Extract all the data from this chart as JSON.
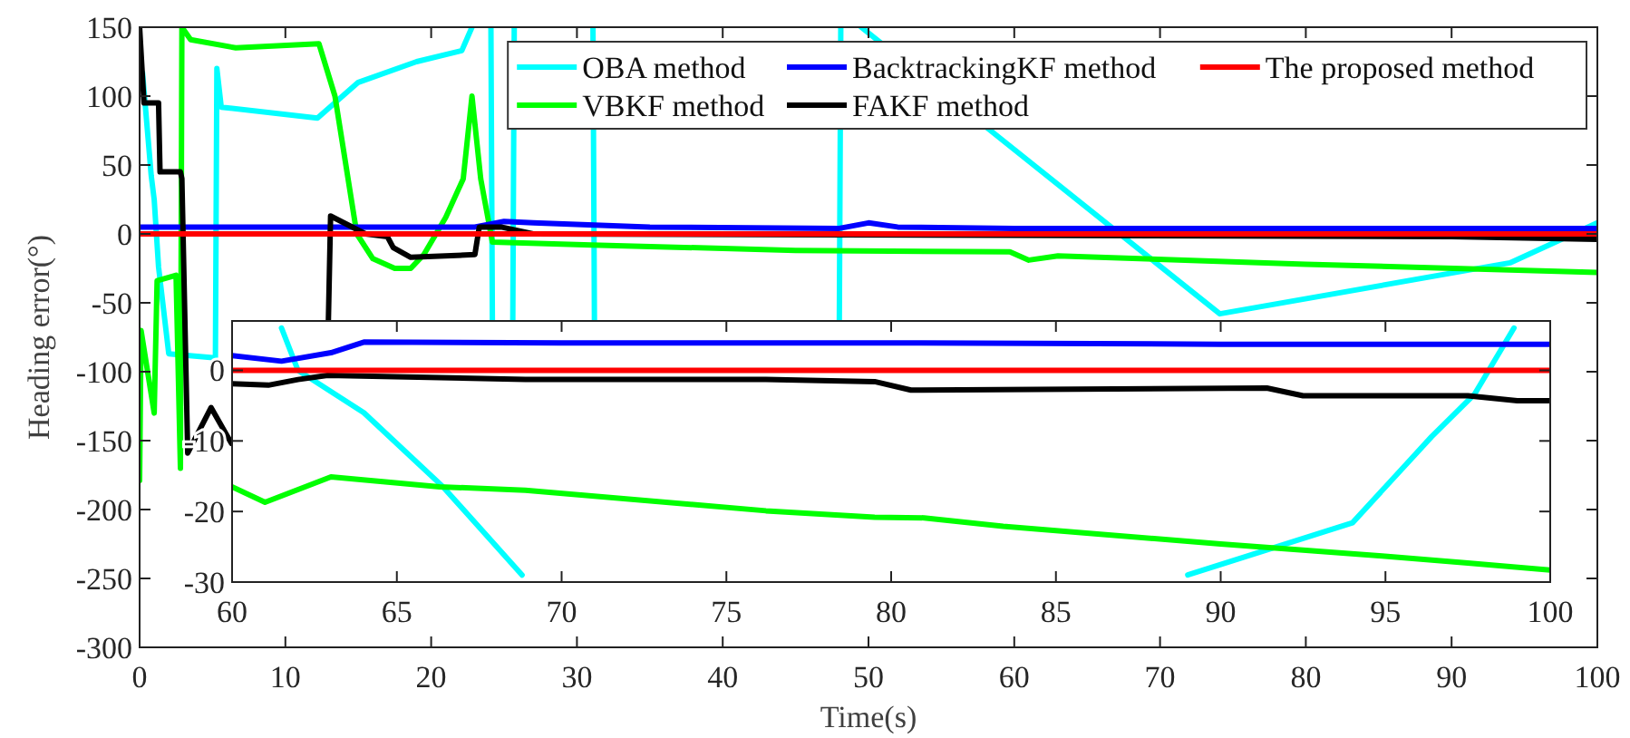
{
  "chart_data": [
    {
      "type": "line",
      "xlabel": "Time(s)",
      "ylabel": "Heading error(°)",
      "xlim": [
        0,
        100
      ],
      "ylim": [
        -300,
        150
      ],
      "xticks": [
        0,
        10,
        20,
        30,
        40,
        50,
        60,
        70,
        80,
        90,
        100
      ],
      "yticks": [
        -300,
        -250,
        -200,
        -150,
        -100,
        -50,
        0,
        50,
        100,
        150
      ],
      "legend": "top right",
      "series": [
        {
          "name": "OBA method",
          "color": "#00ffff",
          "x": [
            0.2,
            0.8,
            1.0,
            1.3,
            2.0,
            5.2,
            5.3,
            5.6,
            12.2,
            15,
            19,
            22.1,
            22.8,
            23.4,
            24.1,
            24.2,
            24.9,
            25.6,
            25.7,
            28,
            31.1,
            31.2,
            40,
            48,
            48.1,
            48.8,
            49.5,
            74.1,
            94,
            100
          ],
          "values": [
            117,
            42,
            25,
            -24,
            -87,
            -90,
            120,
            92,
            84,
            110,
            125,
            133,
            150,
            null,
            150,
            -63,
            null,
            -63,
            150,
            null,
            150,
            -63,
            null,
            -63,
            150,
            null,
            150,
            -58,
            -21,
            8
          ]
        },
        {
          "name": "VBKF method",
          "color": "#00ff00",
          "x": [
            0,
            0.1,
            1.0,
            1.2,
            2.5,
            2.8,
            2.9,
            3.5,
            6.6,
            12.3,
            13.4,
            14.9,
            16,
            17.5,
            18.6,
            19.5,
            21,
            22.2,
            22.8,
            23.4,
            24.2,
            31,
            45,
            59.7,
            61,
            63,
            80,
            100
          ],
          "values": [
            -179,
            -70,
            -130,
            -34,
            -30,
            -170,
            150,
            141,
            135,
            138,
            100,
            0,
            -18,
            -25,
            -25,
            -15,
            12,
            40,
            100,
            40,
            -6,
            -8,
            -12,
            -13,
            -19,
            -16,
            -22,
            -28
          ]
        },
        {
          "name": "BacktrackingKF method",
          "color": "#0000ff",
          "x": [
            0,
            23,
            25,
            27,
            35,
            48,
            50,
            52,
            60,
            100
          ],
          "values": [
            5,
            5,
            9,
            8,
            5,
            4,
            8,
            5,
            4,
            4
          ]
        },
        {
          "name": "FAKF method",
          "color": "#000000",
          "x": [
            0,
            0.3,
            1.3,
            1.4,
            2.8,
            2.9,
            3.3,
            4.9,
            6.3,
            12.9,
            12.95,
            13.1,
            15.5,
            17,
            17.4,
            18.6,
            23,
            23.3,
            24.8,
            27,
            90,
            100
          ],
          "values": [
            150,
            95,
            95,
            45,
            45,
            40,
            -159,
            -126,
            -152,
            null,
            -63,
            13,
            0,
            -2,
            -10,
            -17,
            -15,
            5,
            5,
            0,
            -2,
            -4
          ]
        },
        {
          "name": "The proposed method",
          "color": "#ff0000",
          "x": [
            0,
            100
          ],
          "values": [
            0,
            0
          ]
        }
      ]
    },
    {
      "type": "line",
      "xlim": [
        60,
        100
      ],
      "ylim": [
        -30,
        7
      ],
      "xticks": [
        60,
        65,
        70,
        75,
        80,
        85,
        90,
        95,
        100
      ],
      "yticks": [
        -30,
        -20,
        -10,
        0
      ],
      "series": [
        {
          "color": "#00ffff",
          "x": [
            61.5,
            62,
            64,
            66.4,
            68.8,
            75,
            89.0,
            94,
            96.4,
            97.7,
            98.9
          ],
          "values": [
            6,
            0,
            -6,
            -16.5,
            -29,
            null,
            -29,
            -21.6,
            -9.4,
            -3.4,
            6
          ]
        },
        {
          "color": "#00ff00",
          "x": [
            60,
            61,
            63,
            66.3,
            68.9,
            76.2,
            79.5,
            81,
            83.4,
            90,
            94.9,
            97.5,
            100
          ],
          "values": [
            -16.5,
            -18.7,
            -15.1,
            -16.5,
            -17,
            -19.9,
            -20.8,
            -20.9,
            -22.1,
            -24.6,
            -26.3,
            -27.3,
            -28.3
          ]
        },
        {
          "color": "#0000ff",
          "x": [
            60,
            61.5,
            63,
            64,
            70,
            80,
            90,
            100
          ],
          "values": [
            2.1,
            1.3,
            2.5,
            4,
            3.9,
            3.9,
            3.7,
            3.7
          ]
        },
        {
          "color": "#000000",
          "x": [
            60,
            61.1,
            62,
            62.9,
            68.9,
            76.2,
            79.5,
            80.6,
            91.4,
            92.5,
            97.5,
            99,
            100
          ],
          "values": [
            -1.9,
            -2.1,
            -1.3,
            -0.7,
            -1.3,
            -1.3,
            -1.6,
            -2.8,
            -2.5,
            -3.6,
            -3.6,
            -4.3,
            -4.3
          ]
        },
        {
          "color": "#ff0000",
          "x": [
            60,
            100
          ],
          "values": [
            0,
            0
          ]
        }
      ]
    }
  ]
}
